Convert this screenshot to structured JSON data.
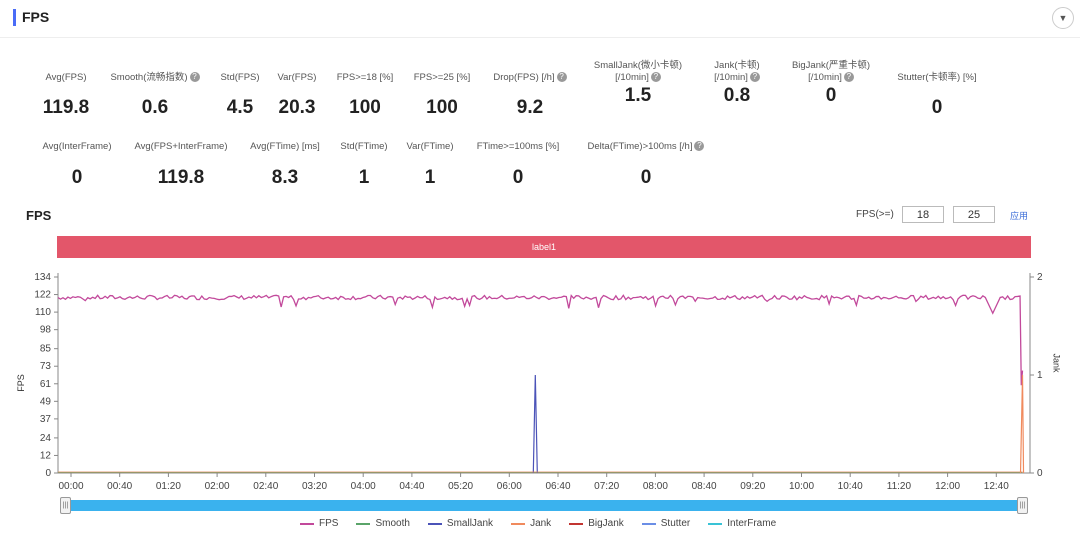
{
  "header": {
    "title": "FPS",
    "collapse_icon": "chevron-down-icon"
  },
  "metrics_row1": [
    {
      "label": "Avg(FPS)",
      "value": "119.8",
      "help": false
    },
    {
      "label": "Smooth(流畅指数)",
      "value": "0.6",
      "help": true
    },
    {
      "label": "Std(FPS)",
      "value": "4.5",
      "help": false
    },
    {
      "label": "Var(FPS)",
      "value": "20.3",
      "help": false
    },
    {
      "label": "FPS>=18 [%]",
      "value": "100",
      "help": false
    },
    {
      "label": "FPS>=25 [%]",
      "value": "100",
      "help": false
    },
    {
      "label": "Drop(FPS) [/h]",
      "value": "9.2",
      "help": true
    },
    {
      "label": "SmallJank(微小卡顿)\n[/10min]",
      "value": "1.5",
      "help": true
    },
    {
      "label": "Jank(卡顿)\n[/10min]",
      "value": "0.8",
      "help": true
    },
    {
      "label": "BigJank(严重卡顿)\n[/10min]",
      "value": "0",
      "help": true
    },
    {
      "label": "Stutter(卡顿率) [%]",
      "value": "0",
      "help": false
    }
  ],
  "metrics_row2": [
    {
      "label": "Avg(InterFrame)",
      "value": "0",
      "help": false
    },
    {
      "label": "Avg(FPS+InterFrame)",
      "value": "119.8",
      "help": false
    },
    {
      "label": "Avg(FTime) [ms]",
      "value": "8.3",
      "help": false
    },
    {
      "label": "Std(FTime)",
      "value": "1",
      "help": false
    },
    {
      "label": "Var(FTime)",
      "value": "1",
      "help": false
    },
    {
      "label": "FTime>=100ms [%]",
      "value": "0",
      "help": false
    },
    {
      "label": "Delta(FTime)>100ms [/h]",
      "value": "0",
      "help": true
    }
  ],
  "chart_controls": {
    "title": "FPS",
    "threshold_label": "FPS(>=)",
    "threshold_1": "18",
    "threshold_2": "25",
    "apply_label": "应用"
  },
  "label_band": "label1",
  "chart_data": {
    "type": "line",
    "y_title": "FPS",
    "y2_title": "Jank",
    "y_ticks": [
      "0",
      "12",
      "24",
      "37",
      "49",
      "61",
      "73",
      "85",
      "98",
      "110",
      "122",
      "134"
    ],
    "y2_ticks": [
      "0",
      "1",
      "2"
    ],
    "x_ticks": [
      "00:00",
      "00:40",
      "01:20",
      "02:00",
      "02:40",
      "03:20",
      "04:00",
      "04:40",
      "05:20",
      "06:00",
      "06:40",
      "07:20",
      "08:00",
      "08:40",
      "09:20",
      "10:00",
      "10:40",
      "11:20",
      "12:00",
      "12:40"
    ],
    "ylim": [
      0,
      134
    ],
    "y2lim": [
      0,
      2
    ],
    "series": [
      {
        "name": "FPS",
        "color": "#c2499b",
        "baseline": 120,
        "events": [
          {
            "t": 755,
            "v": 110
          },
          {
            "t": 770,
            "v": 120
          },
          {
            "t": 778,
            "v": 60
          }
        ]
      },
      {
        "name": "Smooth",
        "color": "#5aa469",
        "baseline": 0
      },
      {
        "name": "SmallJank",
        "color": "#4b53b8",
        "baseline": 0,
        "events": [
          {
            "t": 385,
            "v": 1
          }
        ]
      },
      {
        "name": "Jank",
        "color": "#f08a5d",
        "baseline": 0,
        "events": [
          {
            "t": 778,
            "v": 1
          }
        ]
      },
      {
        "name": "BigJank",
        "color": "#c23531",
        "baseline": 0
      },
      {
        "name": "Stutter",
        "color": "#6b8ee6",
        "baseline": 0
      },
      {
        "name": "InterFrame",
        "color": "#39c3d6",
        "baseline": 0
      }
    ],
    "grid": false,
    "legend_position": "bottom"
  },
  "slider": {
    "left_handle": "|||",
    "right_handle": "|||"
  }
}
